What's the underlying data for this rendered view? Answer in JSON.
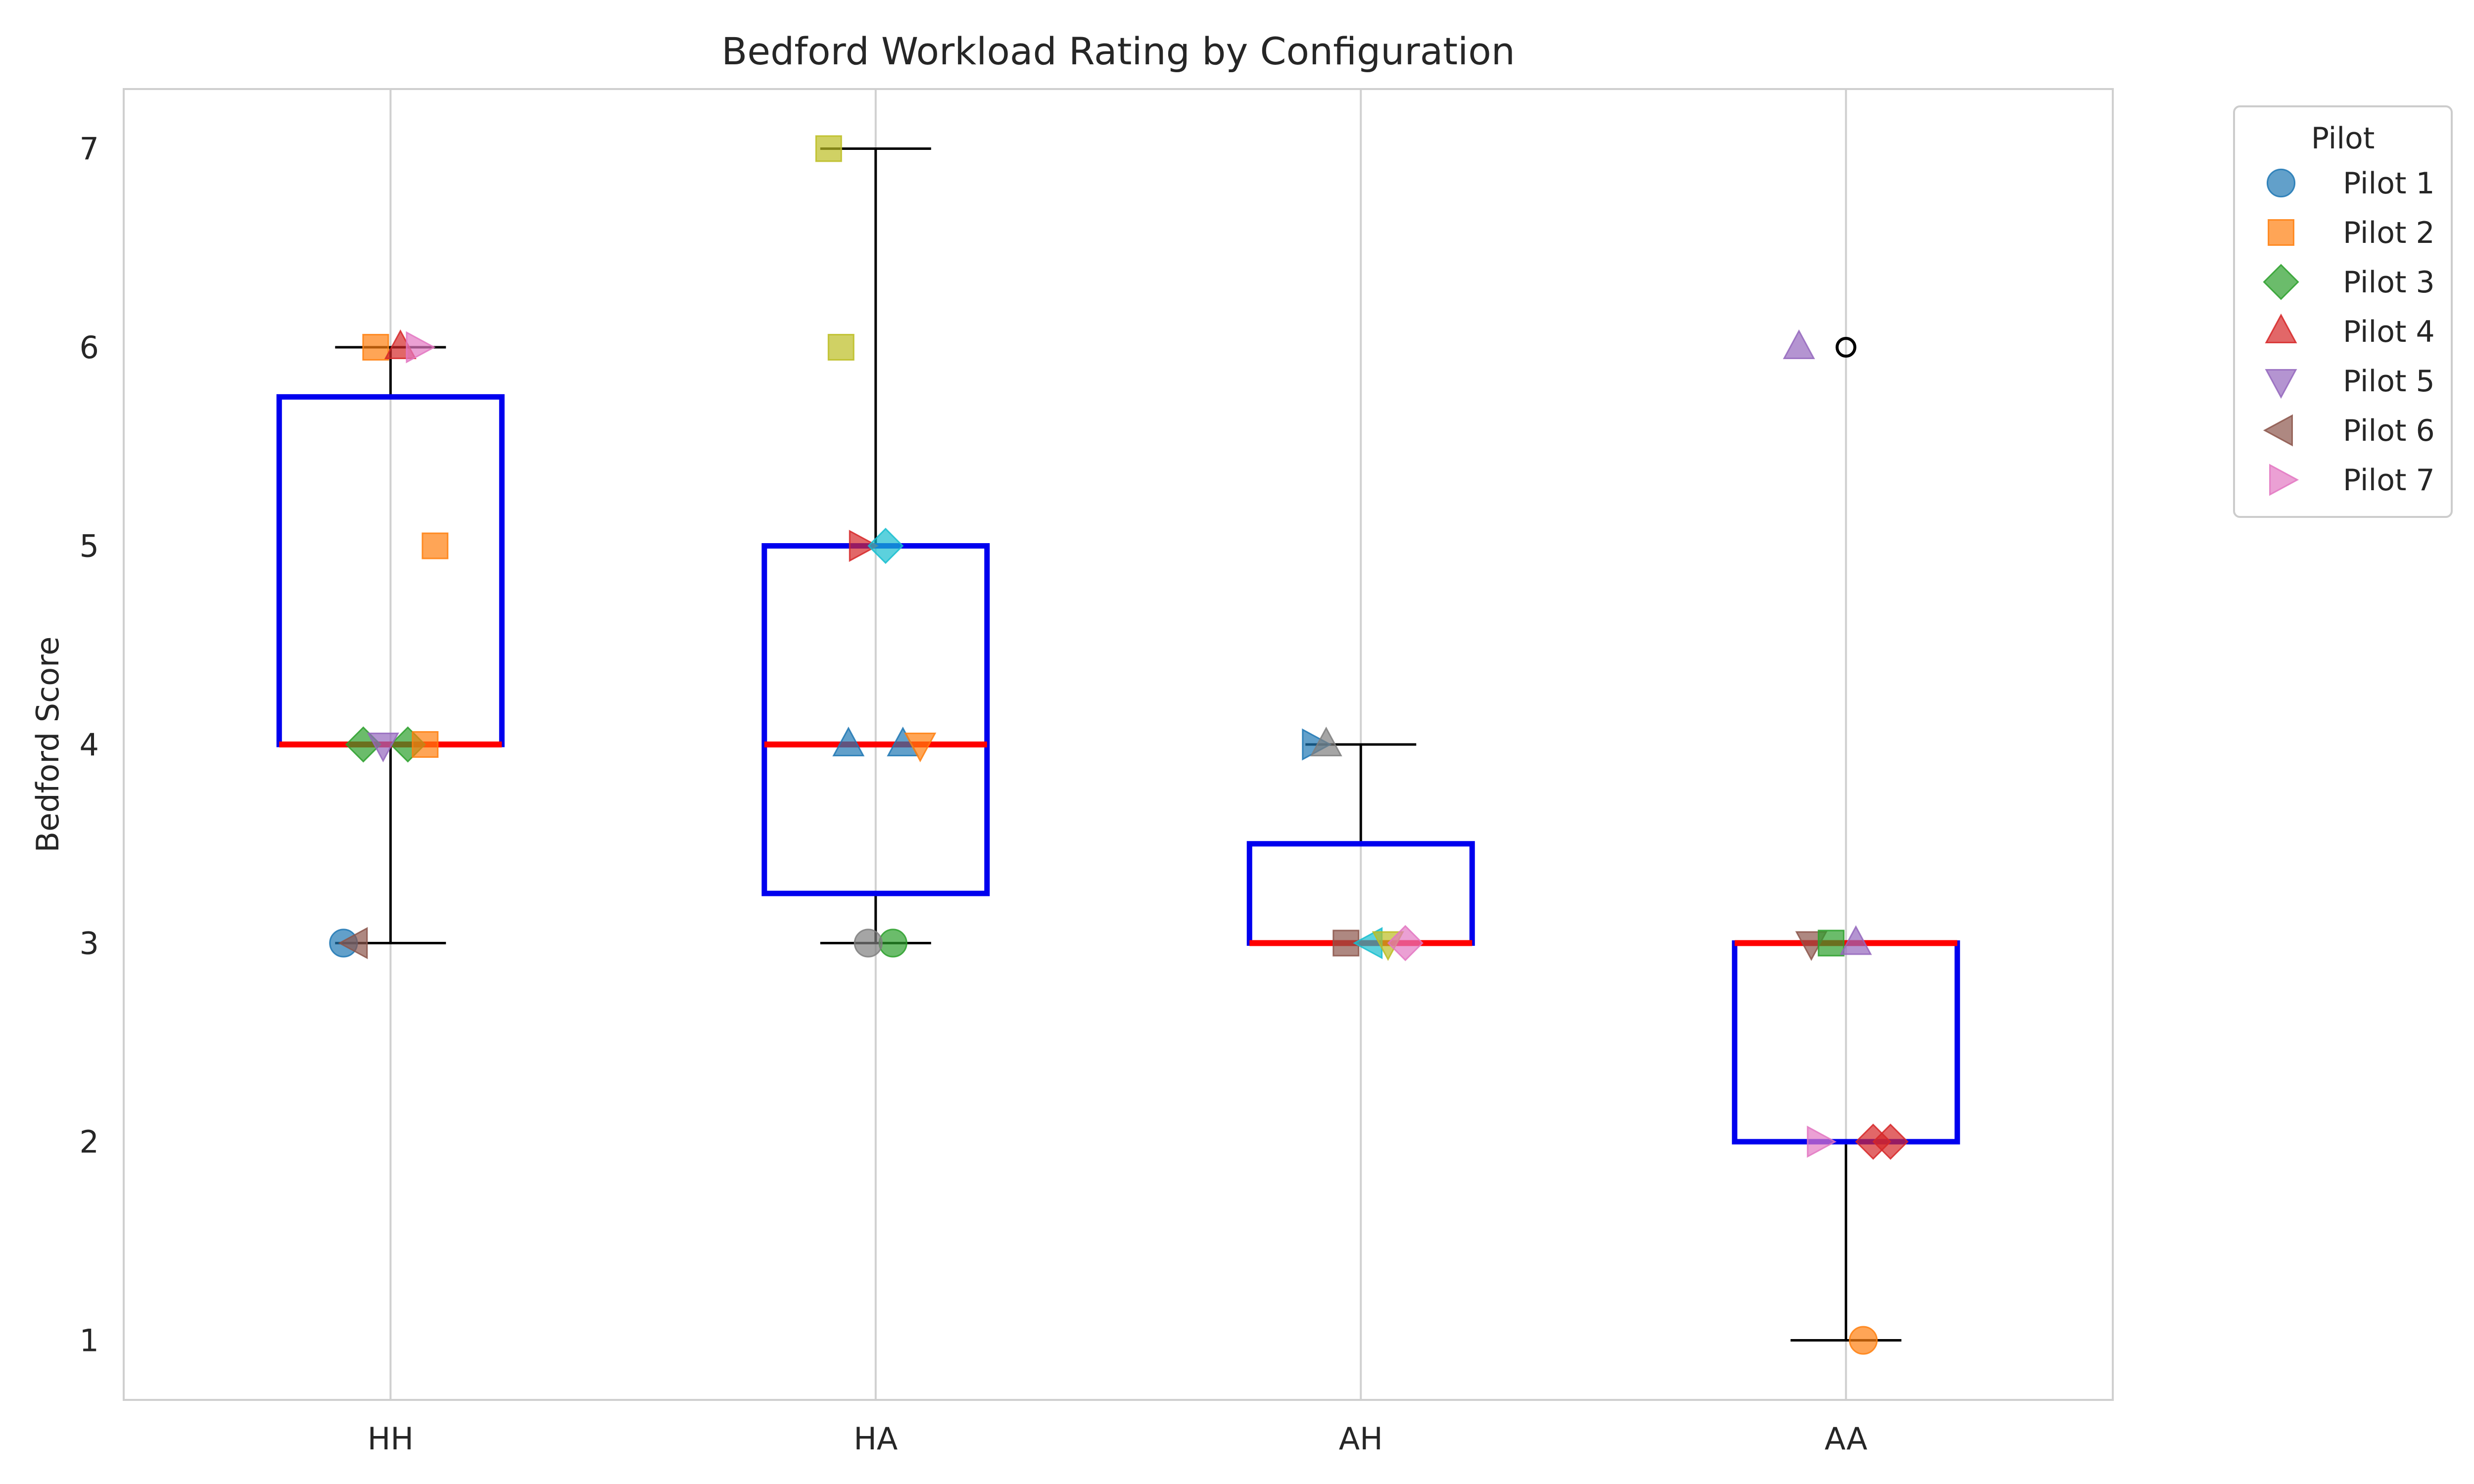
{
  "chart_data": {
    "type": "box",
    "title": "Bedford Workload Rating by Configuration",
    "xlabel": "",
    "ylabel": "Bedford Score",
    "categories": [
      "HH",
      "HA",
      "AH",
      "AA"
    ],
    "ylim": [
      0.7,
      7.3
    ],
    "yticks": [
      "1",
      "2",
      "3",
      "4",
      "5",
      "6",
      "7"
    ],
    "grid": "vertical",
    "legend": {
      "title": "Pilot",
      "placement": "outside-top-right",
      "entries": [
        {
          "name": "Pilot 1",
          "marker": "circle",
          "color": "#1f77b4"
        },
        {
          "name": "Pilot 2",
          "marker": "square",
          "color": "#ff7f0e"
        },
        {
          "name": "Pilot 3",
          "marker": "diamond",
          "color": "#2ca02c"
        },
        {
          "name": "Pilot 4",
          "marker": "triangle-up",
          "color": "#d62728"
        },
        {
          "name": "Pilot 5",
          "marker": "triangle-down",
          "color": "#9467bd"
        },
        {
          "name": "Pilot 6",
          "marker": "triangle-left",
          "color": "#8c564b"
        },
        {
          "name": "Pilot 7",
          "marker": "triangle-right",
          "color": "#e377c2"
        }
      ]
    },
    "colors": {
      "box": "#0000ee",
      "median": "#ff0000",
      "whisker": "#000000",
      "grid": "#d0d0d0"
    },
    "boxes": [
      {
        "category": "HH",
        "whislo": 3,
        "q1": 4,
        "median": 4,
        "q3": 5.75,
        "whishi": 6,
        "fliers": []
      },
      {
        "category": "HA",
        "whislo": 3,
        "q1": 3.25,
        "median": 4,
        "q3": 5,
        "whishi": 7,
        "fliers": []
      },
      {
        "category": "AH",
        "whislo": 3,
        "q1": 3,
        "median": 3,
        "q3": 3.5,
        "whishi": 4,
        "fliers": []
      },
      {
        "category": "AA",
        "whislo": 1,
        "q1": 2,
        "median": 3,
        "q3": 3,
        "whishi": 3,
        "fliers": [
          6
        ]
      }
    ],
    "points": [
      {
        "category": "HH",
        "y": 3,
        "marker": "circle",
        "color": "#1f77b4"
      },
      {
        "category": "HH",
        "y": 3,
        "marker": "triangle-left",
        "color": "#8c564b"
      },
      {
        "category": "HH",
        "y": 6,
        "marker": "square",
        "color": "#ff7f0e"
      },
      {
        "category": "HH",
        "y": 6,
        "marker": "triangle-up",
        "color": "#d62728"
      },
      {
        "category": "HH",
        "y": 6,
        "marker": "triangle-right",
        "color": "#e377c2"
      },
      {
        "category": "HH",
        "y": 5,
        "marker": "square",
        "color": "#ff7f0e"
      },
      {
        "category": "HH",
        "y": 4,
        "marker": "diamond",
        "color": "#2ca02c"
      },
      {
        "category": "HH",
        "y": 4,
        "marker": "diamond",
        "color": "#2ca02c"
      },
      {
        "category": "HH",
        "y": 4,
        "marker": "triangle-down",
        "color": "#9467bd"
      },
      {
        "category": "HH",
        "y": 4,
        "marker": "square",
        "color": "#ff7f0e"
      },
      {
        "category": "HA",
        "y": 7,
        "marker": "square",
        "color": "#bcbd22"
      },
      {
        "category": "HA",
        "y": 6,
        "marker": "square",
        "color": "#bcbd22"
      },
      {
        "category": "HA",
        "y": 5,
        "marker": "triangle-right",
        "color": "#d62728"
      },
      {
        "category": "HA",
        "y": 5,
        "marker": "diamond",
        "color": "#17becf"
      },
      {
        "category": "HA",
        "y": 4,
        "marker": "triangle-up",
        "color": "#1f77b4"
      },
      {
        "category": "HA",
        "y": 4,
        "marker": "triangle-down",
        "color": "#ff7f0e"
      },
      {
        "category": "HA",
        "y": 4,
        "marker": "triangle-up",
        "color": "#1f77b4"
      },
      {
        "category": "HA",
        "y": 3,
        "marker": "circle",
        "color": "#2ca02c"
      },
      {
        "category": "HA",
        "y": 3,
        "marker": "circle",
        "color": "#7f7f7f"
      },
      {
        "category": "AH",
        "y": 4,
        "marker": "triangle-right",
        "color": "#1f77b4"
      },
      {
        "category": "AH",
        "y": 4,
        "marker": "triangle-up",
        "color": "#7f7f7f"
      },
      {
        "category": "AH",
        "y": 3,
        "marker": "square",
        "color": "#8c564b"
      },
      {
        "category": "AH",
        "y": 3,
        "marker": "triangle-left",
        "color": "#17becf"
      },
      {
        "category": "AH",
        "y": 3,
        "marker": "triangle-down",
        "color": "#bcbd22"
      },
      {
        "category": "AH",
        "y": 3,
        "marker": "diamond",
        "color": "#e377c2"
      },
      {
        "category": "AA",
        "y": 6,
        "marker": "triangle-up",
        "color": "#9467bd"
      },
      {
        "category": "AA",
        "y": 3,
        "marker": "triangle-down",
        "color": "#8c564b"
      },
      {
        "category": "AA",
        "y": 3,
        "marker": "square",
        "color": "#2ca02c"
      },
      {
        "category": "AA",
        "y": 3,
        "marker": "triangle-up",
        "color": "#9467bd"
      },
      {
        "category": "AA",
        "y": 2,
        "marker": "diamond",
        "color": "#d62728"
      },
      {
        "category": "AA",
        "y": 2,
        "marker": "diamond",
        "color": "#d62728"
      },
      {
        "category": "AA",
        "y": 2,
        "marker": "triangle-right",
        "color": "#e377c2"
      },
      {
        "category": "AA",
        "y": 1,
        "marker": "circle",
        "color": "#ff7f0e"
      }
    ]
  }
}
